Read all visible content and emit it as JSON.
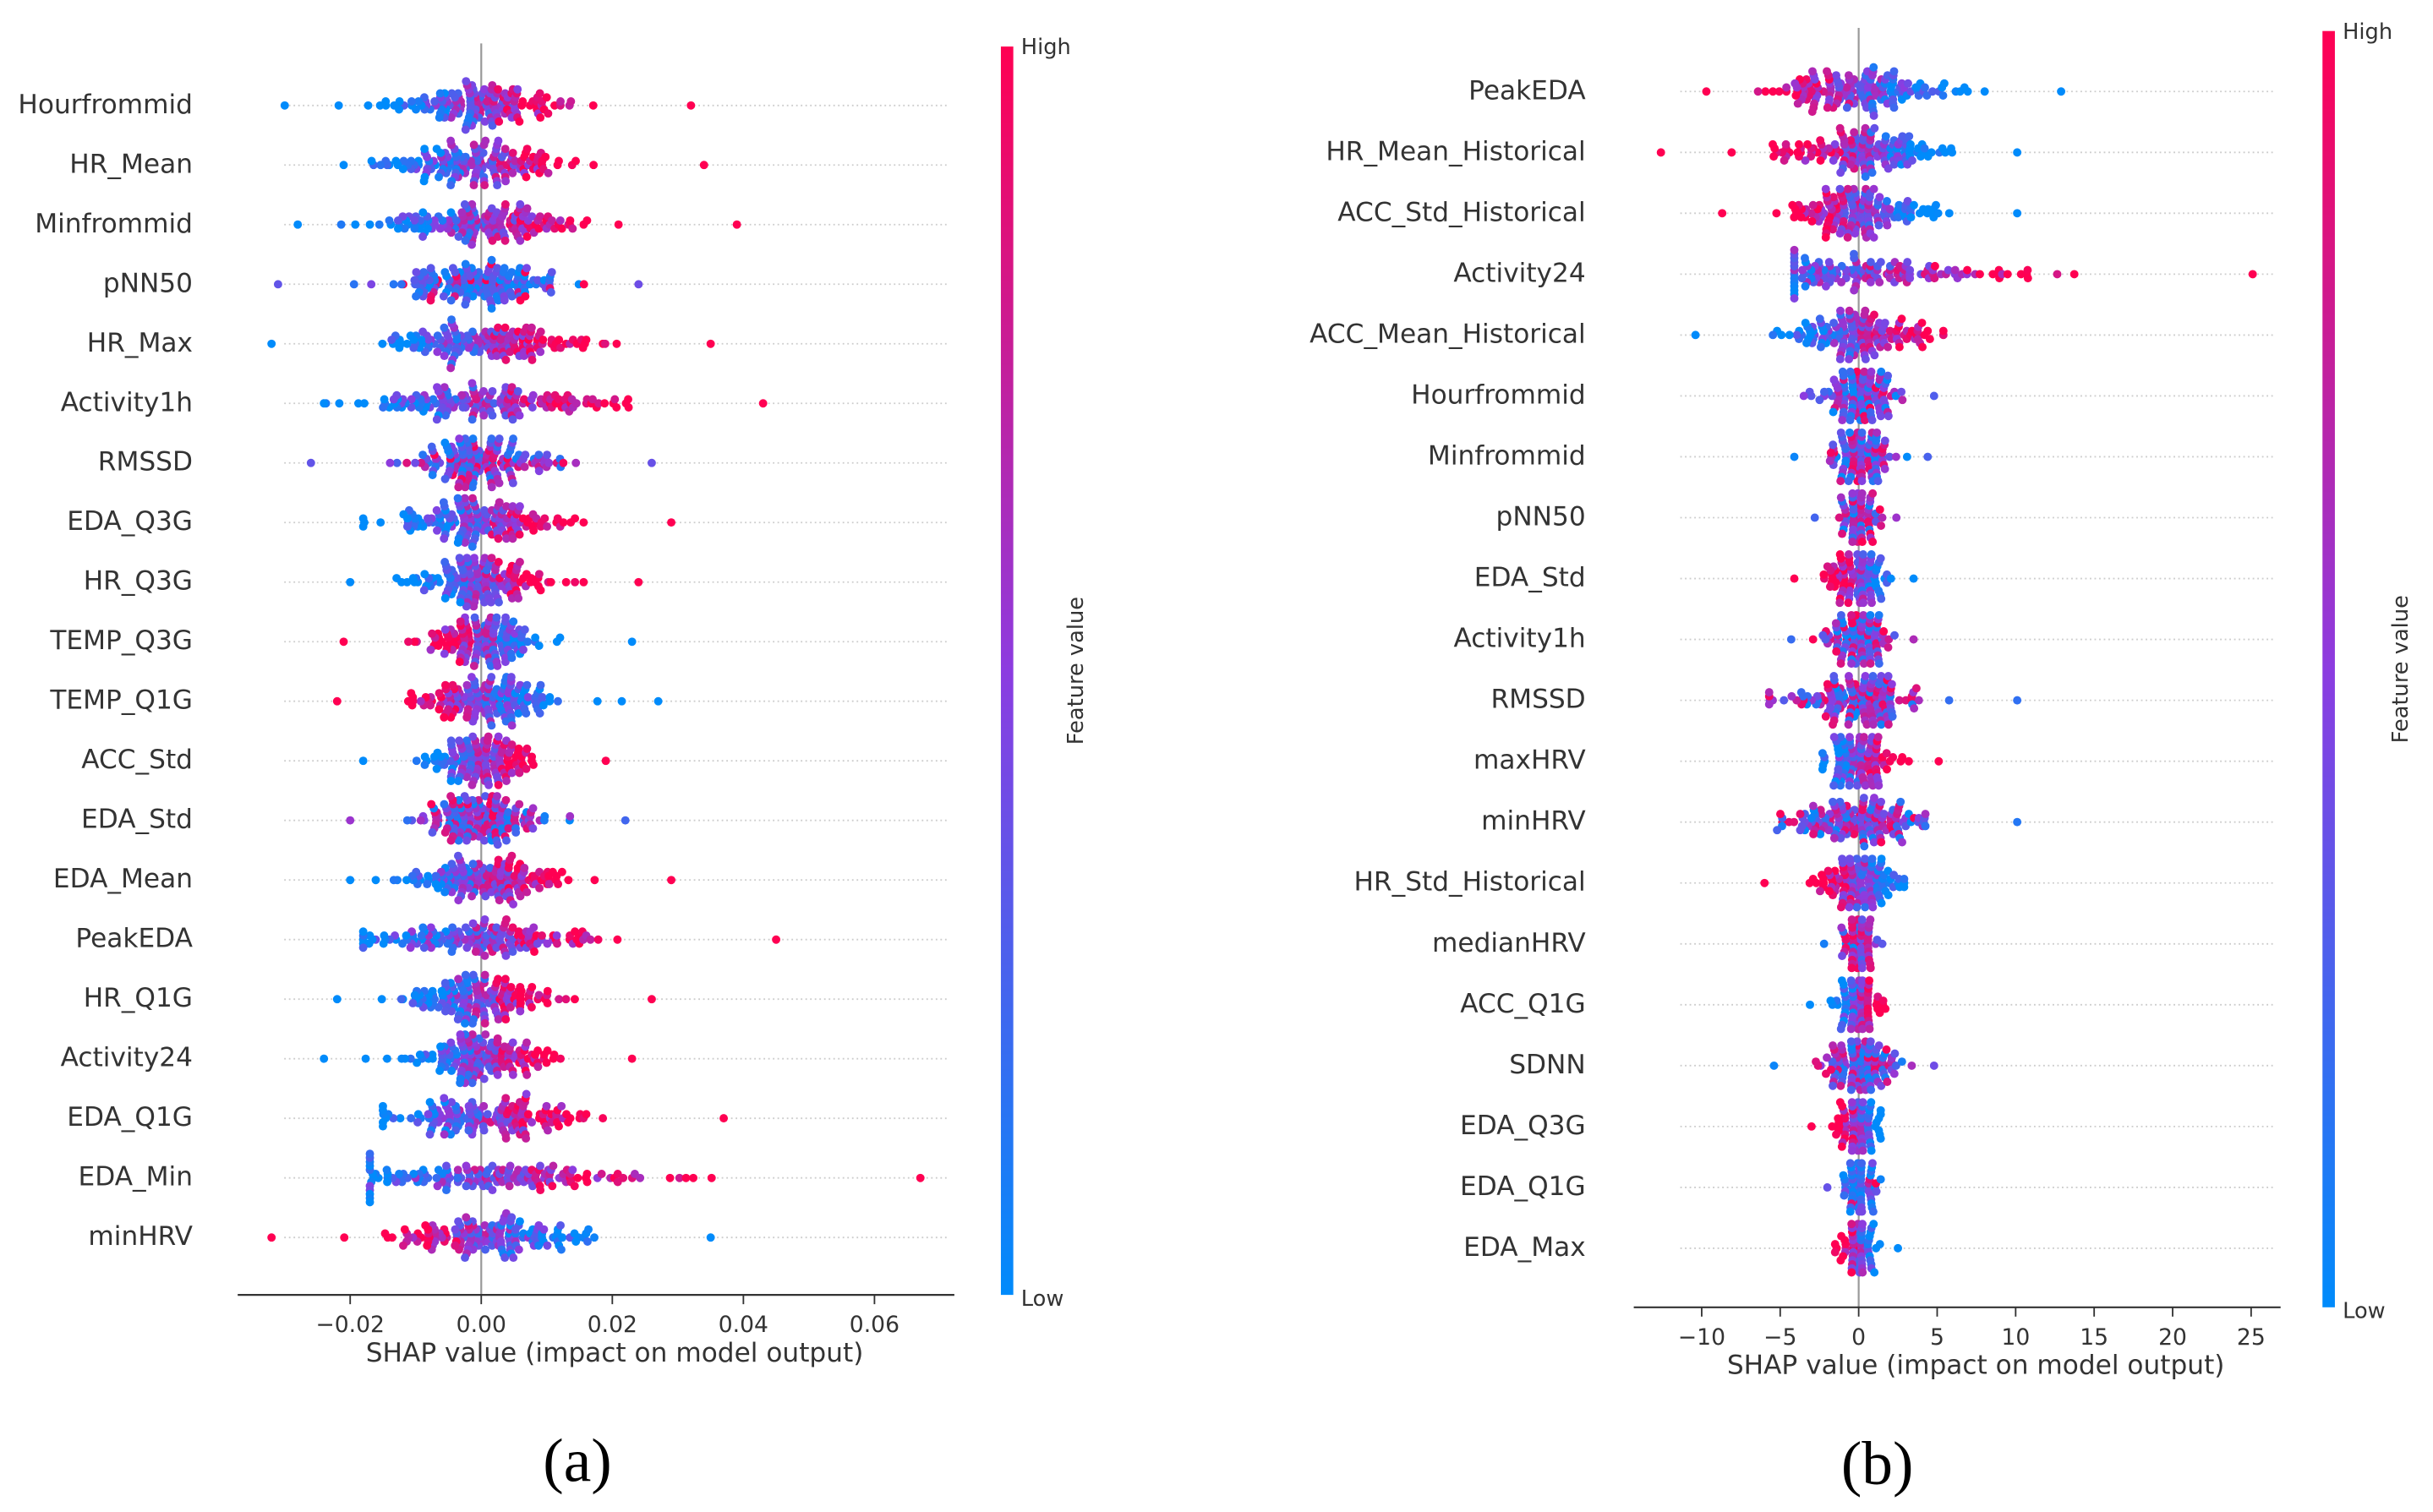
{
  "chart_data": [
    {
      "type": "scatter",
      "subtype": "shap-beeswarm",
      "panel_label": "(a)",
      "xlabel": "SHAP value (impact on model output)",
      "xlim": [
        -0.037,
        0.072
      ],
      "xticks": [
        -0.02,
        0.0,
        0.02,
        0.04,
        0.06
      ],
      "xtick_labels": [
        "−0.02",
        "0.00",
        "0.02",
        "0.04",
        "0.06"
      ],
      "colorbar": {
        "label": "Feature value",
        "high": "High",
        "low": "Low"
      },
      "features": [
        {
          "name": "Hourfrommid",
          "min": -0.03,
          "max": 0.032,
          "trend": "high-positive"
        },
        {
          "name": "HR_Mean",
          "min": -0.021,
          "max": 0.034,
          "trend": "high-positive"
        },
        {
          "name": "Minfrommid",
          "min": -0.028,
          "max": 0.039,
          "trend": "high-positive"
        },
        {
          "name": "pNN50",
          "min": -0.031,
          "max": 0.024,
          "trend": "mostly-low"
        },
        {
          "name": "HR_Max",
          "min": -0.032,
          "max": 0.035,
          "trend": "high-positive"
        },
        {
          "name": "Activity1h",
          "min": -0.024,
          "max": 0.043,
          "trend": "high-positive"
        },
        {
          "name": "RMSSD",
          "min": -0.026,
          "max": 0.026,
          "trend": "mixed"
        },
        {
          "name": "EDA_Q3G",
          "min": -0.018,
          "max": 0.029,
          "trend": "high-positive"
        },
        {
          "name": "HR_Q3G",
          "min": -0.02,
          "max": 0.024,
          "trend": "high-positive"
        },
        {
          "name": "TEMP_Q3G",
          "min": -0.021,
          "max": 0.023,
          "trend": "high-negative"
        },
        {
          "name": "TEMP_Q1G",
          "min": -0.022,
          "max": 0.027,
          "trend": "high-negative"
        },
        {
          "name": "ACC_Std",
          "min": -0.018,
          "max": 0.019,
          "trend": "high-positive"
        },
        {
          "name": "EDA_Std",
          "min": -0.02,
          "max": 0.022,
          "trend": "mixed"
        },
        {
          "name": "EDA_Mean",
          "min": -0.02,
          "max": 0.029,
          "trend": "high-positive"
        },
        {
          "name": "PeakEDA",
          "min": -0.018,
          "max": 0.045,
          "trend": "high-positive"
        },
        {
          "name": "HR_Q1G",
          "min": -0.022,
          "max": 0.026,
          "trend": "high-positive"
        },
        {
          "name": "Activity24",
          "min": -0.024,
          "max": 0.023,
          "trend": "high-positive"
        },
        {
          "name": "EDA_Q1G",
          "min": -0.015,
          "max": 0.037,
          "trend": "high-positive"
        },
        {
          "name": "EDA_Min",
          "min": -0.017,
          "max": 0.067,
          "trend": "high-positive"
        },
        {
          "name": "minHRV",
          "min": -0.032,
          "max": 0.035,
          "trend": "high-negative"
        }
      ]
    },
    {
      "type": "scatter",
      "subtype": "shap-beeswarm",
      "panel_label": "(b)",
      "xlabel": "SHAP value (impact on model output)",
      "xlim": [
        -14.3,
        26.9
      ],
      "xticks": [
        -10,
        -5,
        0,
        5,
        10,
        15,
        20,
        25
      ],
      "xtick_labels": [
        "−10",
        "−5",
        "0",
        "5",
        "10",
        "15",
        "20",
        "25"
      ],
      "colorbar": {
        "label": "Feature value",
        "high": "High",
        "low": "Low"
      },
      "features": [
        {
          "name": "PeakEDA",
          "min": -9.7,
          "max": 12.9,
          "trend": "high-negative"
        },
        {
          "name": "HR_Mean_Historical",
          "min": -12.6,
          "max": 10.1,
          "trend": "high-negative"
        },
        {
          "name": "ACC_Std_Historical",
          "min": -8.7,
          "max": 10.1,
          "trend": "high-negative"
        },
        {
          "name": "Activity24",
          "min": -4.1,
          "max": 25.1,
          "trend": "high-positive"
        },
        {
          "name": "ACC_Mean_Historical",
          "min": -10.4,
          "max": 5.4,
          "trend": "high-positive"
        },
        {
          "name": "Hourfrommid",
          "min": -3.5,
          "max": 4.8,
          "trend": "mixed"
        },
        {
          "name": "Minfrommid",
          "min": -4.1,
          "max": 4.4,
          "trend": "mixed"
        },
        {
          "name": "pNN50",
          "min": -2.8,
          "max": 2.4,
          "trend": "mixed"
        },
        {
          "name": "EDA_Std",
          "min": -4.1,
          "max": 3.5,
          "trend": "high-negative"
        },
        {
          "name": "Activity1h",
          "min": -4.3,
          "max": 3.5,
          "trend": "mixed"
        },
        {
          "name": "RMSSD",
          "min": -5.7,
          "max": 10.1,
          "trend": "mixed"
        },
        {
          "name": "maxHRV",
          "min": -2.3,
          "max": 5.1,
          "trend": "high-positive"
        },
        {
          "name": "minHRV",
          "min": -5.2,
          "max": 10.1,
          "trend": "mixed"
        },
        {
          "name": "HR_Std_Historical",
          "min": -6.0,
          "max": 2.9,
          "trend": "high-negative"
        },
        {
          "name": "medianHRV",
          "min": -2.2,
          "max": 1.5,
          "trend": "mixed"
        },
        {
          "name": "ACC_Q1G",
          "min": -3.1,
          "max": 1.7,
          "trend": "high-positive"
        },
        {
          "name": "SDNN",
          "min": -5.4,
          "max": 4.8,
          "trend": "mixed"
        },
        {
          "name": "EDA_Q3G",
          "min": -3.0,
          "max": 1.4,
          "trend": "high-negative"
        },
        {
          "name": "EDA_Q1G",
          "min": -2.0,
          "max": 1.4,
          "trend": "mostly-low"
        },
        {
          "name": "EDA_Max",
          "min": -1.5,
          "max": 2.5,
          "trend": "high-negative"
        }
      ]
    }
  ],
  "colors": {
    "low": "#008bfb",
    "mid": "#8c3ce0",
    "high": "#ff0052",
    "axis": "#333333",
    "zero_line": "#999999",
    "grid": "#cccccc"
  }
}
